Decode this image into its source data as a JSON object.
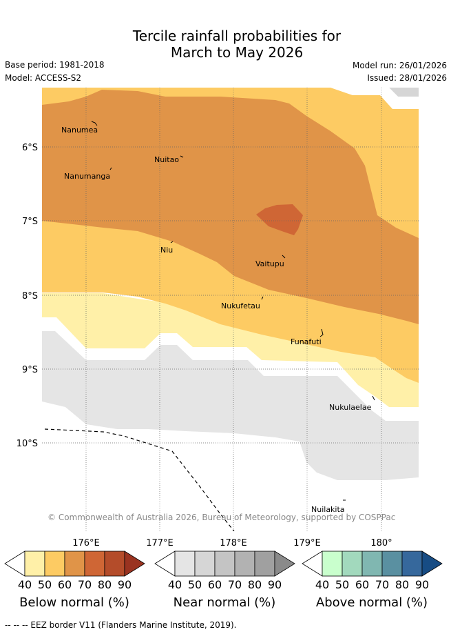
{
  "title_line1": "Tercile rainfall probabilities for",
  "title_line2": "March to May 2026",
  "base_period": "Base period: 1981-2018",
  "model": "Model: ACCESS-S2",
  "model_run": "Model run: 26/01/2026",
  "issued": "Issued: 28/01/2026",
  "copyright": "© Commonwealth of Australia 2026, Bureau of Meteorology, supported by COSPPac",
  "footer": "--  --  -- EEZ border V11 (Flanders Marine Institute, 2019).",
  "axes": {
    "lat_labels": [
      "6°S",
      "7°S",
      "8°S",
      "9°S",
      "10°S"
    ],
    "lon_labels": [
      "176°E",
      "177°E",
      "178°E",
      "179°E",
      "180°"
    ]
  },
  "places": {
    "nanumea": "Nanumea",
    "nanumanga": "Nanumanga",
    "nuitao": "Nuitao",
    "niu": "Niu",
    "vaitupu": "Vaitupu",
    "nukufetau": "Nukufetau",
    "funafuti": "Funafuti",
    "nukulaelae": "Nukulaelae",
    "nuilakita": "Nuilakita"
  },
  "colorbars": {
    "below": {
      "label": "Below normal (%)",
      "ticks": [
        "40",
        "50",
        "60",
        "70",
        "80",
        "90"
      ],
      "colors": [
        "#fff0a8",
        "#fdcb63",
        "#e09448",
        "#cf6635",
        "#b44c2a",
        "#9a3320"
      ]
    },
    "near": {
      "label": "Near normal (%)",
      "ticks": [
        "40",
        "50",
        "60",
        "70",
        "80",
        "90"
      ],
      "colors": [
        "#e5e5e5",
        "#d6d6d6",
        "#c4c4c4",
        "#b2b2b2",
        "#a0a0a0",
        "#8a8a8a"
      ]
    },
    "above": {
      "label": "Above normal (%)",
      "ticks": [
        "40",
        "50",
        "60",
        "70",
        "80",
        "90"
      ],
      "colors": [
        "#c9ffcd",
        "#a2d9bd",
        "#80b7b1",
        "#5a90a1",
        "#36689c",
        "#174c84"
      ]
    }
  },
  "legend_colors": {
    "below_40_50": "#fff0a8",
    "below_50_60": "#fdcb63",
    "below_60_70": "#e09448",
    "below_70_80": "#cf6635",
    "near_40_50": "#e5e5e5",
    "near_50_60": "#d6d6d6"
  }
}
